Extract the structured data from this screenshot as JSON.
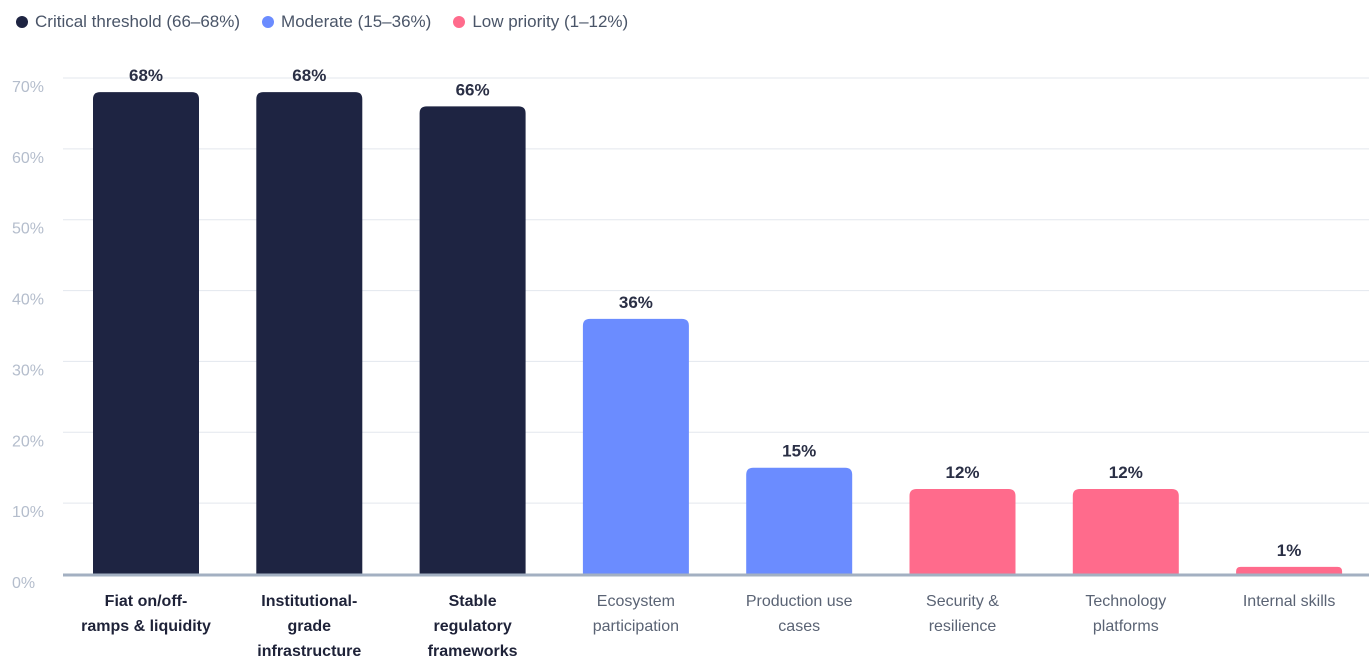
{
  "chart_data": {
    "type": "bar",
    "legend": [
      {
        "label": "Critical threshold (66–68%)",
        "color": "#1e2442"
      },
      {
        "label": "Moderate (15–36%)",
        "color": "#6b8cff"
      },
      {
        "label": "Low priority (1–12%)",
        "color": "#ff6b8c"
      }
    ],
    "categories": [
      [
        "Fiat on/off-",
        "ramps & liquidity"
      ],
      [
        "Institutional-",
        "grade",
        "infrastructure"
      ],
      [
        "Stable",
        "regulatory",
        "frameworks"
      ],
      [
        "Ecosystem",
        "participation"
      ],
      [
        "Production use",
        "cases"
      ],
      [
        "Security &",
        "resilience"
      ],
      [
        "Technology",
        "platforms"
      ],
      [
        "Internal skills"
      ]
    ],
    "values": [
      68,
      68,
      66,
      36,
      15,
      12,
      12,
      1
    ],
    "value_labels": [
      "68%",
      "68%",
      "66%",
      "36%",
      "15%",
      "12%",
      "12%",
      "1%"
    ],
    "groups": [
      0,
      0,
      0,
      1,
      1,
      2,
      2,
      2
    ],
    "ylim": [
      0,
      70
    ],
    "yticks": [
      {
        "value": 0,
        "label": "0%"
      },
      {
        "value": 10,
        "label": "10%"
      },
      {
        "value": 20,
        "label": "20%"
      },
      {
        "value": 30,
        "label": "30%"
      },
      {
        "value": 40,
        "label": "40%"
      },
      {
        "value": 50,
        "label": "50%"
      },
      {
        "value": 60,
        "label": "60%"
      },
      {
        "value": 70,
        "label": "70%"
      }
    ],
    "grid": true,
    "legend_position": "top-left"
  }
}
